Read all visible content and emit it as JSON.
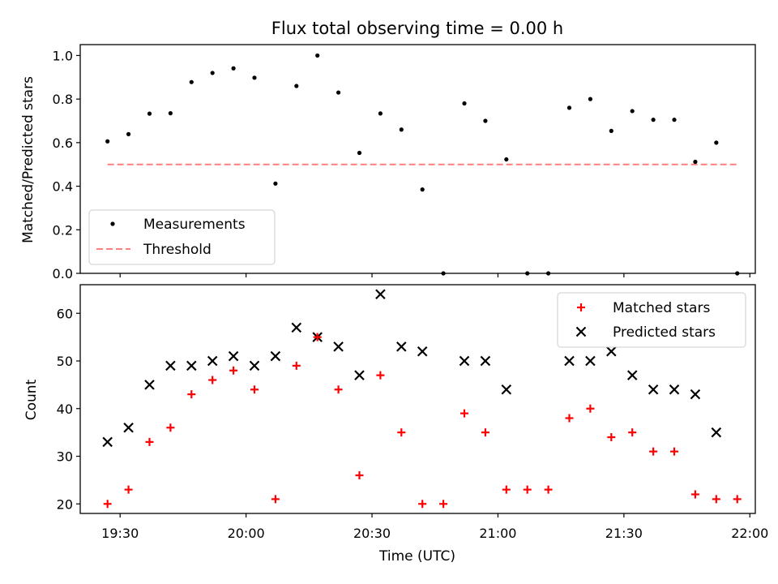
{
  "chart_data": [
    {
      "type": "scatter",
      "title": "Flux total observing time = 0.00 h",
      "ylabel": "Matched/Predicted stars",
      "ylim": [
        0,
        1.05
      ],
      "yticks": [
        "0.0",
        "0.2",
        "0.4",
        "0.6",
        "0.8",
        "1.0"
      ],
      "legend": "lower-left",
      "series": [
        {
          "name": "Measurements",
          "color": "#000000",
          "marker": "dot",
          "x": [
            "19:27",
            "19:32",
            "19:37",
            "19:42",
            "19:47",
            "19:52",
            "19:57",
            "20:02",
            "20:07",
            "20:12",
            "20:17",
            "20:22",
            "20:27",
            "20:32",
            "20:37",
            "20:42",
            "20:47",
            "20:52",
            "20:57",
            "21:02",
            "21:07",
            "21:12",
            "21:17",
            "21:22",
            "21:27",
            "21:32",
            "21:37",
            "21:42",
            "21:47",
            "21:52",
            "21:57"
          ],
          "y": [
            0.606,
            0.639,
            0.733,
            0.735,
            0.878,
            0.92,
            0.941,
            0.898,
            0.412,
            0.86,
            1.0,
            0.83,
            0.553,
            0.734,
            0.66,
            0.385,
            0.0,
            0.78,
            0.7,
            0.523,
            0.0,
            0.0,
            0.76,
            0.8,
            0.654,
            0.745,
            0.705,
            0.705,
            0.512,
            0.6,
            0.0
          ]
        },
        {
          "name": "Threshold",
          "color": "#ff7f7f",
          "marker": "dashed-line",
          "x": [
            "19:27",
            "21:57"
          ],
          "y": [
            0.5,
            0.5
          ]
        }
      ]
    },
    {
      "type": "scatter",
      "xlabel": "Time (UTC)",
      "ylabel": "Count",
      "ylim": [
        18,
        66
      ],
      "yticks": [
        "20",
        "30",
        "40",
        "50",
        "60"
      ],
      "xticks": [
        "19:30",
        "20:00",
        "20:30",
        "21:00",
        "21:30",
        "22:00"
      ],
      "legend": "top-right",
      "series": [
        {
          "name": "Matched stars",
          "color": "#ff0000",
          "marker": "plus",
          "x": [
            "19:27",
            "19:32",
            "19:37",
            "19:42",
            "19:47",
            "19:52",
            "19:57",
            "20:02",
            "20:07",
            "20:12",
            "20:17",
            "20:22",
            "20:27",
            "20:32",
            "20:37",
            "20:42",
            "20:47",
            "20:52",
            "20:57",
            "21:02",
            "21:07",
            "21:12",
            "21:17",
            "21:22",
            "21:27",
            "21:32",
            "21:37",
            "21:42",
            "21:47",
            "21:52",
            "21:57"
          ],
          "y": [
            20,
            23,
            33,
            36,
            43,
            46,
            48,
            44,
            21,
            49,
            55,
            44,
            26,
            47,
            35,
            20,
            20,
            39,
            35,
            23,
            23,
            23,
            38,
            40,
            34,
            35,
            31,
            31,
            22,
            21,
            21
          ]
        },
        {
          "name": "Predicted stars",
          "color": "#000000",
          "marker": "x",
          "x": [
            "19:27",
            "19:32",
            "19:37",
            "19:42",
            "19:47",
            "19:52",
            "19:57",
            "20:02",
            "20:07",
            "20:12",
            "20:17",
            "20:22",
            "20:27",
            "20:32",
            "20:37",
            "20:42",
            "20:52",
            "20:57",
            "21:02",
            "21:17",
            "21:22",
            "21:27",
            "21:32",
            "21:37",
            "21:42",
            "21:47",
            "21:52"
          ],
          "y": [
            33,
            36,
            45,
            49,
            49,
            50,
            51,
            49,
            51,
            57,
            55,
            53,
            47,
            64,
            53,
            52,
            50,
            50,
            44,
            50,
            50,
            52,
            47,
            44,
            44,
            43,
            35
          ]
        }
      ]
    }
  ]
}
